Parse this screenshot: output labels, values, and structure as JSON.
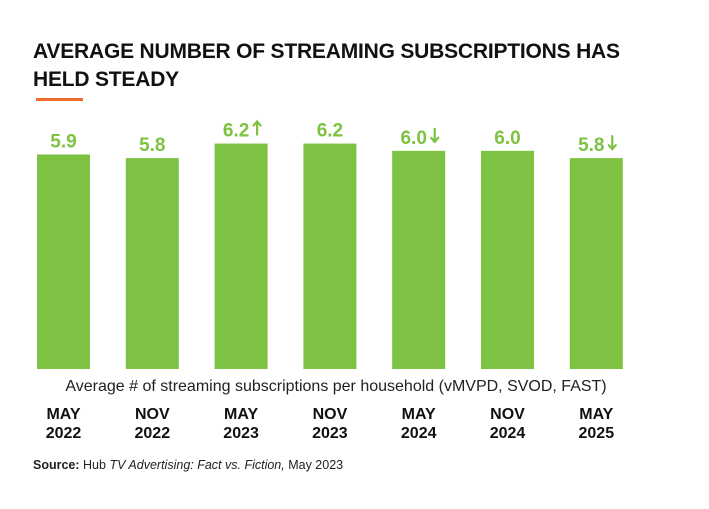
{
  "title": "AVERAGE NUMBER OF STREAMING SUBSCRIPTIONS HAS HELD STEADY",
  "colors": {
    "bar": "#7dc242",
    "label": "#7dc242",
    "accent": "#ee6b2f",
    "text": "#111111"
  },
  "chart_data": {
    "type": "bar",
    "title": "AVERAGE NUMBER OF STREAMING SUBSCRIPTIONS HAS HELD STEADY",
    "xlabel": "Average # of streaming subscriptions per household (vMVPD, SVOD, FAST)",
    "ylabel": "",
    "ylim": [
      0,
      6.6
    ],
    "grid": false,
    "categories": [
      {
        "month": "MAY",
        "year": "2022"
      },
      {
        "month": "NOV",
        "year": "2022"
      },
      {
        "month": "MAY",
        "year": "2023"
      },
      {
        "month": "NOV",
        "year": "2023"
      },
      {
        "month": "MAY",
        "year": "2024"
      },
      {
        "month": "NOV",
        "year": "2024"
      },
      {
        "month": "MAY",
        "year": "2025"
      }
    ],
    "values": [
      5.9,
      5.8,
      6.2,
      6.2,
      6.0,
      6.0,
      5.8
    ],
    "data_labels": [
      "5.9",
      "5.8",
      "6.2",
      "6.2",
      "6.0",
      "6.0",
      "5.8"
    ],
    "trend_arrows": [
      "",
      "",
      "up",
      "",
      "down",
      "",
      "down"
    ]
  },
  "source": {
    "label": "Source:",
    "publisher": "Hub",
    "report": "TV Advertising: Fact vs. Fiction,",
    "date": "May 2023"
  }
}
